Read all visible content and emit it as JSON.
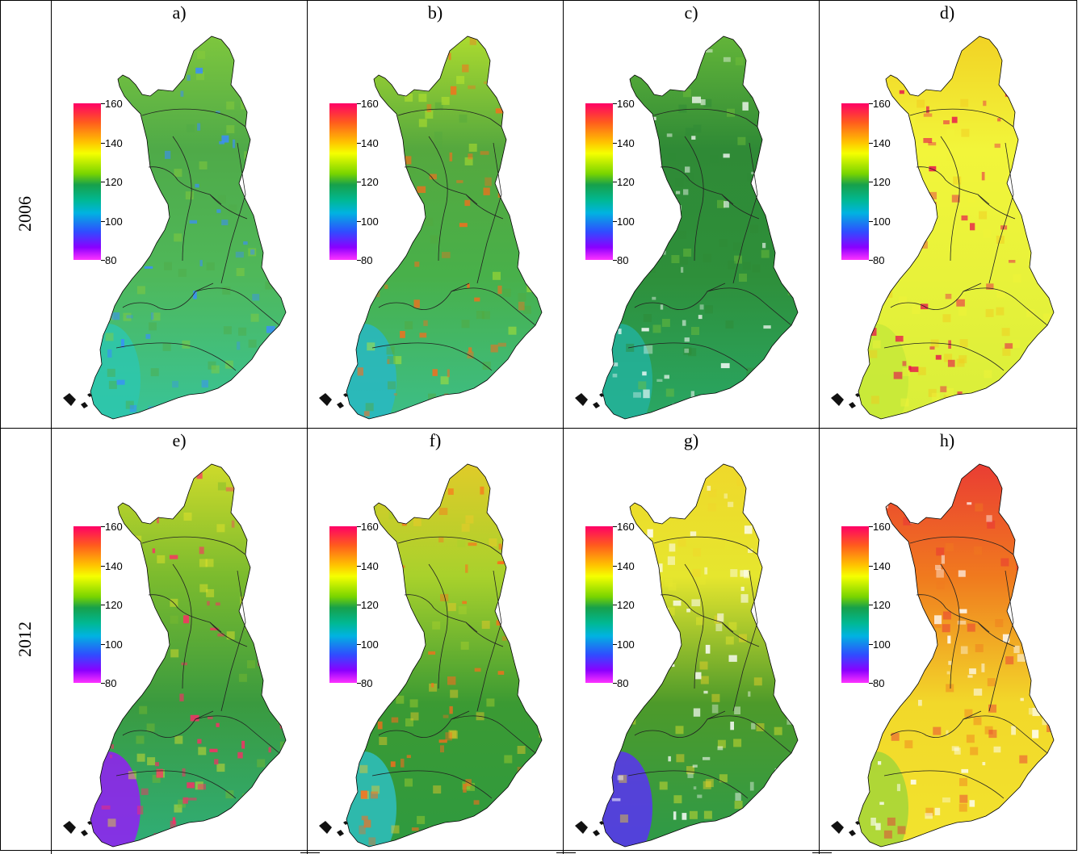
{
  "rows": [
    {
      "label": "2006"
    },
    {
      "label": "2012"
    }
  ],
  "panels": [
    {
      "label": "a)",
      "theme": "green",
      "row": 0
    },
    {
      "label": "b)",
      "theme": "blocky",
      "row": 0
    },
    {
      "label": "c)",
      "theme": "dark",
      "row": 0
    },
    {
      "label": "d)",
      "theme": "yellow",
      "row": 0
    },
    {
      "label": "e)",
      "theme": "gradient",
      "row": 1
    },
    {
      "label": "f)",
      "theme": "blocky2",
      "row": 1
    },
    {
      "label": "g)",
      "theme": "yellowg",
      "row": 1
    },
    {
      "label": "h)",
      "theme": "red",
      "row": 1
    }
  ],
  "colorbar": {
    "ticks": [
      "160",
      "140",
      "120",
      "100",
      "80"
    ],
    "min": 80,
    "max": 160
  }
}
